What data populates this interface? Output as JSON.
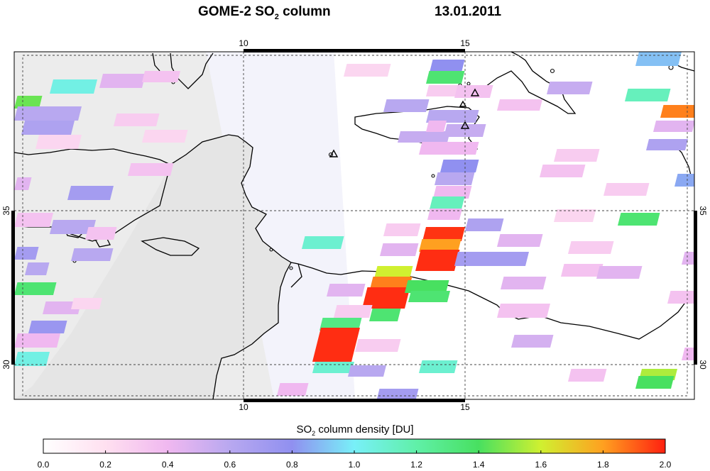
{
  "header": {
    "title_prefix": "GOME-2 SO",
    "title_sub": "2",
    "title_suffix": " column",
    "date": "13.01.2011"
  },
  "map": {
    "lon_ticks": [
      "10",
      "15"
    ],
    "lat_ticks": [
      "35",
      "30"
    ],
    "volcano_markers": 4
  },
  "colorbar": {
    "label_prefix": "SO",
    "label_sub": "2",
    "label_suffix": " column density [DU]",
    "ticks": [
      "0.0",
      "0.2",
      "0.4",
      "0.6",
      "0.8",
      "1.0",
      "1.2",
      "1.4",
      "1.6",
      "1.8",
      "2.0"
    ],
    "min": 0.0,
    "max": 2.0,
    "stops": [
      "#ffffff",
      "#ffe0f0",
      "#f0b8f0",
      "#b8a8f0",
      "#9090f0",
      "#78f0f8",
      "#60f0a8",
      "#48e060",
      "#d0f030",
      "#ffa020",
      "#ff2010"
    ]
  }
}
